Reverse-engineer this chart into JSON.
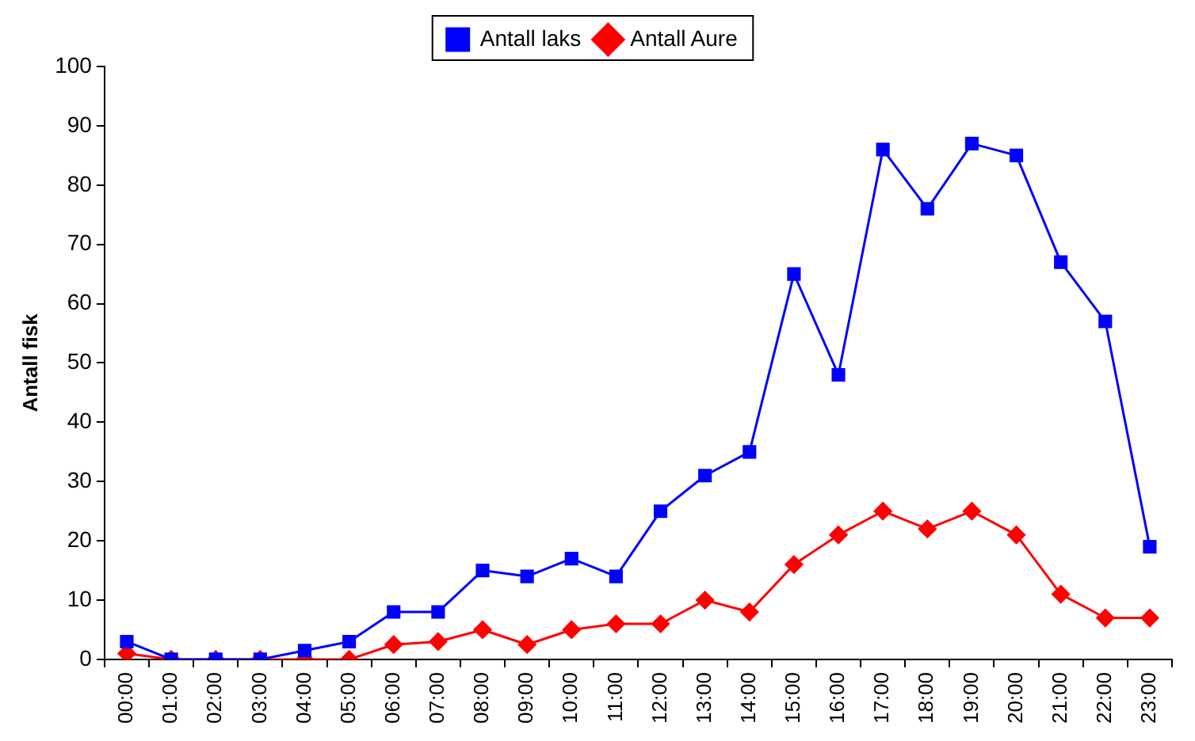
{
  "chart_data": {
    "type": "line",
    "ylabel": "Antall fisk",
    "categories": [
      "00:00",
      "01:00",
      "02:00",
      "03:00",
      "04:00",
      "05:00",
      "06:00",
      "07:00",
      "08:00",
      "09:00",
      "10:00",
      "11:00",
      "12:00",
      "13:00",
      "14:00",
      "15:00",
      "16:00",
      "17:00",
      "18:00",
      "19:00",
      "20:00",
      "21:00",
      "22:00",
      "23:00"
    ],
    "series": [
      {
        "name": "Antall laks",
        "color": "#0000ff",
        "marker": "square",
        "values": [
          3,
          0,
          0,
          0,
          1.5,
          3,
          8,
          8,
          15,
          14,
          17,
          14,
          25,
          31,
          35,
          65,
          48,
          86,
          76,
          87,
          85,
          67,
          57,
          19
        ]
      },
      {
        "name": "Antall Aure",
        "color": "#ff0000",
        "marker": "diamond",
        "values": [
          1,
          0,
          0,
          0,
          0,
          0,
          2.5,
          3,
          5,
          2.5,
          5,
          6,
          6,
          10,
          8,
          16,
          21,
          25,
          22,
          25,
          21,
          11,
          7,
          7
        ]
      }
    ],
    "ylim": [
      0,
      100
    ],
    "yticks": [
      0,
      10,
      20,
      30,
      40,
      50,
      60,
      70,
      80,
      90,
      100
    ],
    "grid": false,
    "legend": "top",
    "line_style": "solid"
  }
}
